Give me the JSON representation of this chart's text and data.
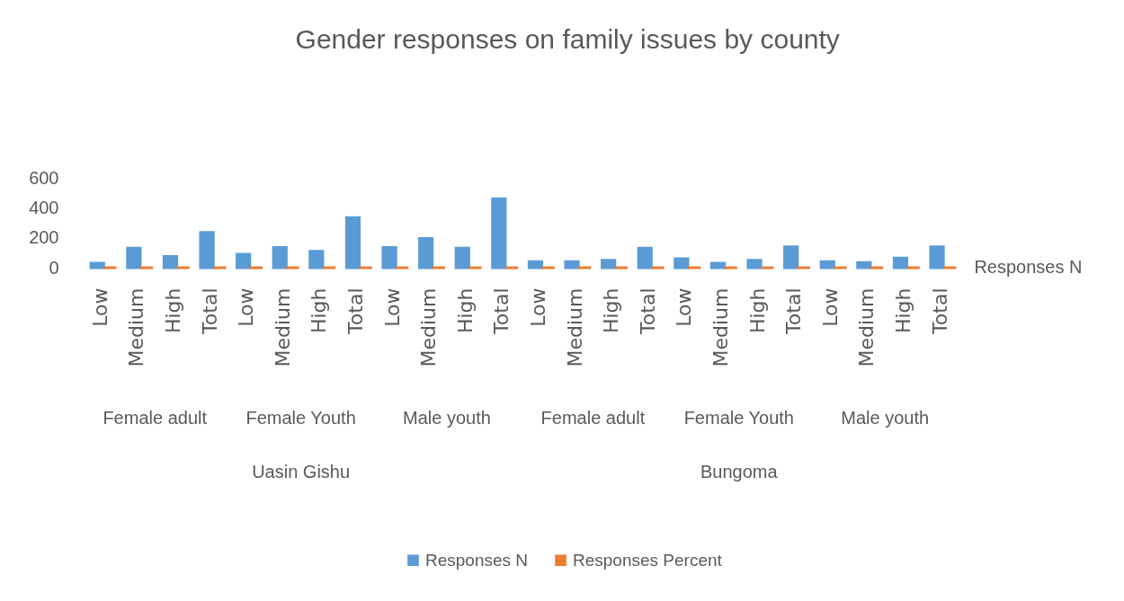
{
  "chart_data": {
    "type": "bar",
    "title": "Gender responses on family issues by county",
    "categories": [
      "Low",
      "Medium",
      "High",
      "Total",
      "Low",
      "Medium",
      "High",
      "Total",
      "Low",
      "Medium",
      "High",
      "Total",
      "Low",
      "Medium",
      "High",
      "Total",
      "Low",
      "Medium",
      "High",
      "Total",
      "Low",
      "Medium",
      "High",
      "Total"
    ],
    "annotations": [
      "Female adult",
      "Female Youth",
      "Male youth",
      "Female adult",
      "Female Youth",
      "Male youth",
      "Uasin Gishu",
      "Bungoma"
    ],
    "series": [
      {
        "name": "Responses N",
        "color": "#5b9bd5",
        "values": [
          30,
          130,
          75,
          235,
          90,
          135,
          110,
          335,
          135,
          195,
          130,
          460,
          40,
          40,
          50,
          130,
          60,
          30,
          50,
          140,
          40,
          35,
          65,
          140
        ]
      },
      {
        "name": "Responses Percent",
        "color": "#ed7d31",
        "values": [
          0,
          0,
          0,
          0,
          0,
          0,
          0,
          0,
          0,
          0,
          0,
          0,
          0,
          0,
          0,
          0,
          0,
          0,
          0,
          0,
          0,
          0,
          0,
          0
        ]
      }
    ],
    "ylim": [
      0,
      600
    ],
    "yticks": [
      0,
      200,
      400,
      600
    ],
    "grid": false,
    "legend": "bottom"
  }
}
